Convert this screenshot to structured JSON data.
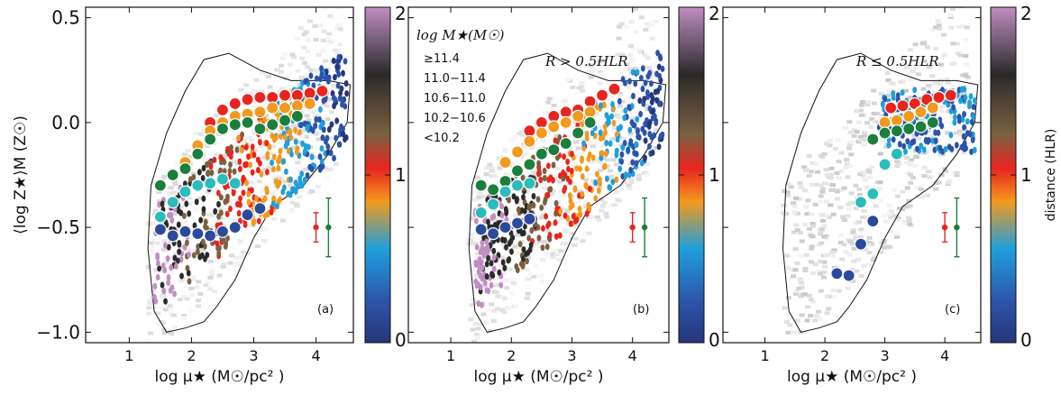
{
  "figure": {
    "shared_x_ticks": [
      "1",
      "2",
      "3",
      "4"
    ],
    "shared_y_ticks": [
      "0.5",
      "0.0",
      "−0.5",
      "−1.0"
    ],
    "colorbar_ticks": [
      "0",
      "1",
      "2"
    ],
    "colorbar_label": "distance (HLR)",
    "xlabel": "log μ★ (M☉/pc² )",
    "ylabel": "⟨log Z★⟩M (Z☉)",
    "legend_title": "log M★(M☉)",
    "colormap": [
      "#26367a",
      "#2c53a8",
      "#1f9fdc",
      "#f29a1e",
      "#e8241f",
      "#7a6140",
      "#2a2a2a",
      "#c08ec2"
    ]
  },
  "chart_data": [
    {
      "type": "scatter",
      "panel_label": "(a)",
      "annotation": "",
      "xlim": [
        0.3,
        4.6
      ],
      "ylim": [
        -1.05,
        0.55
      ],
      "binned_series": [
        {
          "name": "≥11.4",
          "color": "#e8241f",
          "x": [
            2.3,
            2.5,
            2.7,
            2.9,
            3.1,
            3.3,
            3.5,
            3.7,
            3.9,
            4.1
          ],
          "y": [
            0.0,
            0.06,
            0.09,
            0.11,
            0.12,
            0.12,
            0.13,
            0.13,
            0.14,
            0.15
          ]
        },
        {
          "name": "11.0−11.4",
          "color": "#f29a1e",
          "x": [
            1.9,
            2.1,
            2.3,
            2.5,
            2.7,
            2.9,
            3.1,
            3.3,
            3.5,
            3.7,
            3.9
          ],
          "y": [
            -0.19,
            -0.11,
            -0.04,
            0.0,
            0.03,
            0.04,
            0.05,
            0.07,
            0.07,
            0.08,
            0.09
          ]
        },
        {
          "name": "10.6−11.0",
          "color": "#1a7f3c",
          "x": [
            1.5,
            1.7,
            1.9,
            2.1,
            2.3,
            2.5,
            2.7,
            2.9,
            3.1,
            3.3,
            3.5,
            3.7
          ],
          "y": [
            -0.3,
            -0.25,
            -0.22,
            -0.15,
            -0.08,
            -0.03,
            -0.01,
            0.0,
            -0.03,
            -0.01,
            0.01,
            0.03
          ]
        },
        {
          "name": "10.2−10.6",
          "color": "#2bbcbc",
          "x": [
            1.5,
            1.7,
            1.9,
            2.1,
            2.3,
            2.5,
            2.7
          ],
          "y": [
            -0.45,
            -0.38,
            -0.33,
            -0.3,
            -0.29,
            -0.27,
            -0.29
          ]
        },
        {
          "name": "<10.2",
          "color": "#2c4a9c",
          "x": [
            1.5,
            1.7,
            1.9,
            2.1,
            2.3,
            2.5,
            2.7,
            2.9,
            3.1
          ],
          "y": [
            -0.51,
            -0.54,
            -0.52,
            -0.53,
            -0.54,
            -0.52,
            -0.5,
            -0.44,
            -0.41
          ]
        }
      ],
      "error_bars": [
        {
          "color": "#e8241f",
          "x": 4.0,
          "y": -0.5,
          "err": 0.07
        },
        {
          "color": "#1a7f3c",
          "x": 4.2,
          "y": -0.5,
          "err": 0.14
        }
      ]
    },
    {
      "type": "scatter",
      "panel_label": "(b)",
      "annotation": "R > 0.5HLR",
      "xlim": [
        0.3,
        4.6
      ],
      "ylim": [
        -1.05,
        0.55
      ],
      "binned_series": [
        {
          "name": "≥11.4",
          "color": "#e8241f",
          "x": [
            2.3,
            2.5,
            2.7,
            2.9,
            3.1,
            3.3,
            3.5,
            3.7
          ],
          "y": [
            -0.04,
            0.0,
            0.03,
            0.05,
            0.06,
            0.1,
            0.13,
            0.16
          ]
        },
        {
          "name": "11.0−11.4",
          "color": "#f29a1e",
          "x": [
            1.9,
            2.1,
            2.3,
            2.5,
            2.7,
            2.9,
            3.1,
            3.3
          ],
          "y": [
            -0.19,
            -0.14,
            -0.09,
            -0.05,
            -0.02,
            0.0,
            0.03,
            0.05
          ]
        },
        {
          "name": "10.6−11.0",
          "color": "#1a7f3c",
          "x": [
            1.5,
            1.7,
            1.9,
            2.1,
            2.3,
            2.5,
            2.7,
            2.9,
            3.1,
            3.3
          ],
          "y": [
            -0.3,
            -0.32,
            -0.28,
            -0.23,
            -0.2,
            -0.15,
            -0.13,
            -0.1,
            -0.05,
            0.0
          ]
        },
        {
          "name": "10.2−10.6",
          "color": "#2bbcbc",
          "x": [
            1.5,
            1.7,
            1.9,
            2.1,
            2.3
          ],
          "y": [
            -0.43,
            -0.39,
            -0.33,
            -0.3,
            -0.29
          ]
        },
        {
          "name": "<10.2",
          "color": "#2c4a9c",
          "x": [
            1.5,
            1.7,
            1.9,
            2.1,
            2.3
          ],
          "y": [
            -0.51,
            -0.53,
            -0.5,
            -0.48,
            -0.46
          ]
        }
      ],
      "error_bars": [
        {
          "color": "#e8241f",
          "x": 4.0,
          "y": -0.5,
          "err": 0.07
        },
        {
          "color": "#1a7f3c",
          "x": 4.2,
          "y": -0.5,
          "err": 0.14
        }
      ]
    },
    {
      "type": "scatter",
      "panel_label": "(c)",
      "annotation": "R ≤ 0.5HLR",
      "xlim": [
        0.3,
        4.6
      ],
      "ylim": [
        -1.05,
        0.55
      ],
      "binned_series": [
        {
          "name": "≥11.4",
          "color": "#e8241f",
          "x": [
            3.1,
            3.3,
            3.5,
            3.7,
            3.9,
            4.1
          ],
          "y": [
            0.07,
            0.08,
            0.09,
            0.11,
            0.12,
            0.13
          ]
        },
        {
          "name": "11.0−11.4",
          "color": "#f29a1e",
          "x": [
            3.0,
            3.2,
            3.4,
            3.6,
            3.8
          ],
          "y": [
            0.0,
            0.01,
            0.03,
            0.05,
            0.07
          ]
        },
        {
          "name": "10.6−11.0",
          "color": "#1a7f3c",
          "x": [
            2.8,
            3.0,
            3.2,
            3.4,
            3.6,
            3.8
          ],
          "y": [
            -0.08,
            -0.05,
            -0.04,
            -0.03,
            -0.02,
            0.0
          ]
        },
        {
          "name": "10.2−10.6",
          "color": "#2bbcbc",
          "x": [
            2.6,
            2.8,
            3.0,
            3.2
          ],
          "y": [
            -0.38,
            -0.34,
            -0.2,
            -0.15
          ]
        },
        {
          "name": "<10.2",
          "color": "#2c4a9c",
          "x": [
            2.2,
            2.4,
            2.6,
            2.8
          ],
          "y": [
            -0.72,
            -0.73,
            -0.58,
            -0.47
          ]
        }
      ],
      "error_bars": [
        {
          "color": "#e8241f",
          "x": 4.0,
          "y": -0.5,
          "err": 0.07
        },
        {
          "color": "#1a7f3c",
          "x": 4.2,
          "y": -0.5,
          "err": 0.14
        }
      ]
    }
  ]
}
